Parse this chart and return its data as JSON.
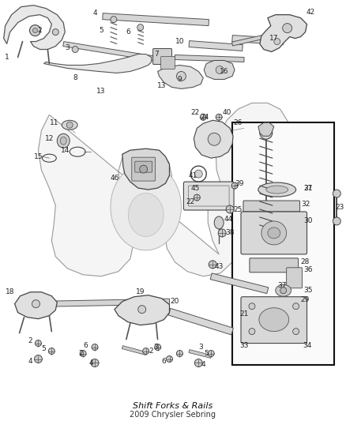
{
  "bg_color": "#ffffff",
  "fig_width": 4.38,
  "fig_height": 5.33,
  "dpi": 100,
  "line_color": "#444444",
  "part_fill": "#e8e8e8",
  "part_edge": "#555555",
  "label_color": "#222222",
  "label_fontsize": 6.5,
  "title1": "Shift Forks & Rails",
  "title2": "2009 Chrysler Sebring"
}
